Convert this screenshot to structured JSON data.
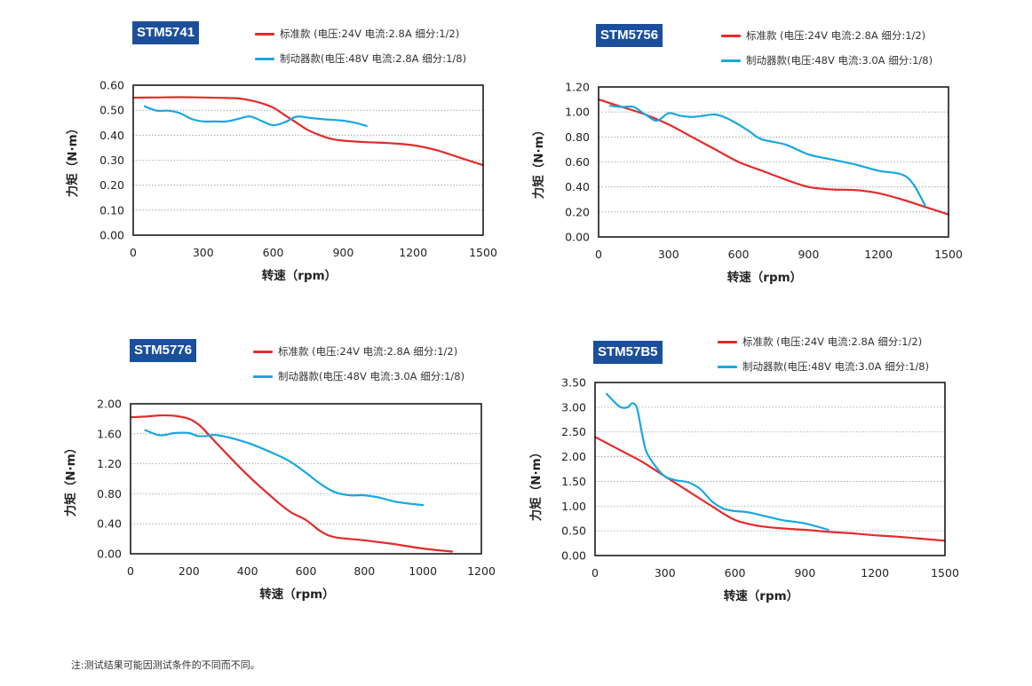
{
  "colors": {
    "standard": "#e32b2b",
    "brake": "#1aa6e0",
    "badge": "#1b4f9c"
  },
  "footnote": "注:测试结果可能因测试条件的不同而不同。",
  "chart_data": [
    {
      "type": "line",
      "title": "STM5741",
      "xlabel": "转速（rpm）",
      "ylabel": "力矩（N·m）",
      "xlim": [
        0,
        1500
      ],
      "ylim": [
        0,
        0.6
      ],
      "xticks": [
        0,
        300,
        600,
        900,
        1200,
        1500
      ],
      "xtick_labels": [
        "0",
        "300",
        "600",
        "900",
        "1200",
        "1500"
      ],
      "yticks": [
        0,
        0.1,
        0.2,
        0.3,
        0.4,
        0.5,
        0.6
      ],
      "ytick_labels": [
        "0.00",
        "0.10",
        "0.20",
        "0.30",
        "0.40",
        "0.50",
        "0.60"
      ],
      "grid": true,
      "series": [
        {
          "name": "标准款 (电压:24V  电流:2.8A  细分:1/2)",
          "legend": "标准款 (电压:24V  电流:2.8A  细分:1/2)",
          "color_key": "standard",
          "points": [
            [
              0,
              0.55
            ],
            [
              100,
              0.551
            ],
            [
              200,
              0.552
            ],
            [
              300,
              0.551
            ],
            [
              400,
              0.549
            ],
            [
              450,
              0.547
            ],
            [
              500,
              0.54
            ],
            [
              550,
              0.528
            ],
            [
              600,
              0.51
            ],
            [
              650,
              0.48
            ],
            [
              700,
              0.45
            ],
            [
              750,
              0.42
            ],
            [
              800,
              0.4
            ],
            [
              850,
              0.385
            ],
            [
              900,
              0.378
            ],
            [
              1000,
              0.372
            ],
            [
              1100,
              0.368
            ],
            [
              1200,
              0.36
            ],
            [
              1300,
              0.34
            ],
            [
              1400,
              0.31
            ],
            [
              1500,
              0.28
            ]
          ]
        },
        {
          "name": "制动器款(电压:48V  电流:2.8A  细分:1/8)",
          "legend": "制动器款(电压:48V  电流:2.8A  细分:1/8)",
          "color_key": "brake",
          "points": [
            [
              50,
              0.515
            ],
            [
              100,
              0.498
            ],
            [
              150,
              0.498
            ],
            [
              200,
              0.488
            ],
            [
              250,
              0.465
            ],
            [
              300,
              0.455
            ],
            [
              350,
              0.455
            ],
            [
              400,
              0.455
            ],
            [
              450,
              0.465
            ],
            [
              500,
              0.475
            ],
            [
              550,
              0.457
            ],
            [
              600,
              0.44
            ],
            [
              650,
              0.452
            ],
            [
              700,
              0.474
            ],
            [
              750,
              0.47
            ],
            [
              800,
              0.465
            ],
            [
              900,
              0.458
            ],
            [
              950,
              0.45
            ],
            [
              1000,
              0.437
            ]
          ]
        }
      ]
    },
    {
      "type": "line",
      "title": "STM5756",
      "xlabel": "转速（rpm）",
      "ylabel": "力矩（N·m）",
      "xlim": [
        0,
        1500
      ],
      "ylim": [
        0,
        1.2
      ],
      "xticks": [
        0,
        300,
        600,
        900,
        1200,
        1500
      ],
      "xtick_labels": [
        "0",
        "300",
        "600",
        "900",
        "1200",
        "1500"
      ],
      "yticks": [
        0,
        0.2,
        0.4,
        0.6,
        0.8,
        1.0,
        1.2
      ],
      "ytick_labels": [
        "0.00",
        "0.20",
        "0.40",
        "0.60",
        "0.80",
        "1.00",
        "1.20"
      ],
      "grid": true,
      "series": [
        {
          "name": "标准款 (电压:24V  电流:2.8A  细分:1/2)",
          "legend": "标准款 (电压:24V  电流:2.8A  细分:1/2)",
          "color_key": "standard",
          "points": [
            [
              0,
              1.1
            ],
            [
              100,
              1.04
            ],
            [
              200,
              0.98
            ],
            [
              300,
              0.9
            ],
            [
              400,
              0.8
            ],
            [
              500,
              0.7
            ],
            [
              600,
              0.6
            ],
            [
              700,
              0.53
            ],
            [
              800,
              0.46
            ],
            [
              900,
              0.4
            ],
            [
              1000,
              0.38
            ],
            [
              1100,
              0.375
            ],
            [
              1200,
              0.35
            ],
            [
              1300,
              0.3
            ],
            [
              1400,
              0.24
            ],
            [
              1500,
              0.18
            ]
          ]
        },
        {
          "name": "制动器款(电压:48V  电流:3.0A  细分:1/8)",
          "legend": "制动器款(电压:48V  电流:3.0A  细分:1/8)",
          "color_key": "brake",
          "points": [
            [
              50,
              1.05
            ],
            [
              100,
              1.04
            ],
            [
              150,
              1.04
            ],
            [
              200,
              0.98
            ],
            [
              250,
              0.93
            ],
            [
              300,
              0.99
            ],
            [
              350,
              0.97
            ],
            [
              400,
              0.96
            ],
            [
              450,
              0.97
            ],
            [
              500,
              0.98
            ],
            [
              550,
              0.95
            ],
            [
              600,
              0.9
            ],
            [
              650,
              0.84
            ],
            [
              700,
              0.78
            ],
            [
              800,
              0.74
            ],
            [
              900,
              0.66
            ],
            [
              1000,
              0.62
            ],
            [
              1100,
              0.58
            ],
            [
              1200,
              0.53
            ],
            [
              1300,
              0.5
            ],
            [
              1350,
              0.42
            ],
            [
              1400,
              0.25
            ]
          ]
        }
      ]
    },
    {
      "type": "line",
      "title": "STM5776",
      "xlabel": "转速（rpm）",
      "ylabel": "力矩（N·m）",
      "xlim": [
        0,
        1200
      ],
      "ylim": [
        0,
        2.0
      ],
      "xticks": [
        0,
        200,
        400,
        600,
        800,
        1000,
        1200
      ],
      "xtick_labels": [
        "0",
        "200",
        "400",
        "600",
        "800",
        "1000",
        "1200"
      ],
      "yticks": [
        0,
        0.4,
        0.8,
        1.2,
        1.6,
        2.0
      ],
      "ytick_labels": [
        "0.00",
        "0.40",
        "0.80",
        "1.20",
        "1.60",
        "2.00"
      ],
      "grid": true,
      "series": [
        {
          "name": "标准款 (电压:24V  电流:2.8A  细分:1/2)",
          "legend": "标准款 (电压:24V  电流:2.8A  细分:1/2)",
          "color_key": "standard",
          "points": [
            [
              0,
              1.82
            ],
            [
              50,
              1.83
            ],
            [
              100,
              1.845
            ],
            [
              150,
              1.84
            ],
            [
              200,
              1.8
            ],
            [
              230,
              1.73
            ],
            [
              250,
              1.66
            ],
            [
              300,
              1.45
            ],
            [
              400,
              1.05
            ],
            [
              500,
              0.7
            ],
            [
              550,
              0.55
            ],
            [
              600,
              0.45
            ],
            [
              650,
              0.3
            ],
            [
              700,
              0.22
            ],
            [
              800,
              0.18
            ],
            [
              900,
              0.13
            ],
            [
              1000,
              0.07
            ],
            [
              1100,
              0.03
            ]
          ]
        },
        {
          "name": "制动器款(电压:48V  电流:3.0A  细分:1/8)",
          "legend": "制动器款(电压:48V  电流:3.0A  细分:1/8)",
          "color_key": "brake",
          "points": [
            [
              50,
              1.65
            ],
            [
              100,
              1.58
            ],
            [
              150,
              1.61
            ],
            [
              200,
              1.61
            ],
            [
              230,
              1.57
            ],
            [
              260,
              1.57
            ],
            [
              300,
              1.58
            ],
            [
              400,
              1.48
            ],
            [
              500,
              1.32
            ],
            [
              550,
              1.22
            ],
            [
              600,
              1.08
            ],
            [
              650,
              0.93
            ],
            [
              700,
              0.82
            ],
            [
              750,
              0.78
            ],
            [
              800,
              0.78
            ],
            [
              850,
              0.75
            ],
            [
              900,
              0.7
            ],
            [
              950,
              0.67
            ],
            [
              1000,
              0.65
            ]
          ]
        }
      ]
    },
    {
      "type": "line",
      "title": "STM57B5",
      "xlabel": "转速（rpm）",
      "ylabel": "力矩（N·m）",
      "xlim": [
        0,
        1500
      ],
      "ylim": [
        0,
        3.5
      ],
      "xticks": [
        0,
        300,
        600,
        900,
        1200,
        1500
      ],
      "xtick_labels": [
        "0",
        "300",
        "600",
        "900",
        "1200",
        "1500"
      ],
      "yticks": [
        0,
        0.5,
        1.0,
        1.5,
        2.0,
        2.5,
        3.0,
        3.5
      ],
      "ytick_labels": [
        "0.00",
        "0.50",
        "1.00",
        "1.50",
        "2.00",
        "2.50",
        "3.00",
        "3.50"
      ],
      "grid": true,
      "series": [
        {
          "name": "标准款 (电压:24V  电流:2.8A  细分:1/2)",
          "legend": "标准款 (电压:24V  电流:2.8A  细分:1/2)",
          "color_key": "standard",
          "points": [
            [
              0,
              2.4
            ],
            [
              100,
              2.15
            ],
            [
              200,
              1.9
            ],
            [
              300,
              1.6
            ],
            [
              400,
              1.3
            ],
            [
              500,
              1.0
            ],
            [
              600,
              0.72
            ],
            [
              700,
              0.6
            ],
            [
              800,
              0.55
            ],
            [
              900,
              0.52
            ],
            [
              1000,
              0.48
            ],
            [
              1100,
              0.45
            ],
            [
              1200,
              0.41
            ],
            [
              1300,
              0.38
            ],
            [
              1400,
              0.34
            ],
            [
              1500,
              0.3
            ]
          ]
        },
        {
          "name": "制动器款(电压:48V  电流:3.0A  细分:1/8)",
          "legend": "制动器款(电压:48V  电流:3.0A  细分:1/8)",
          "color_key": "brake",
          "points": [
            [
              50,
              3.27
            ],
            [
              80,
              3.12
            ],
            [
              110,
              3.0
            ],
            [
              140,
              3.0
            ],
            [
              160,
              3.08
            ],
            [
              180,
              2.98
            ],
            [
              200,
              2.5
            ],
            [
              220,
              2.1
            ],
            [
              260,
              1.8
            ],
            [
              300,
              1.6
            ],
            [
              350,
              1.52
            ],
            [
              400,
              1.48
            ],
            [
              450,
              1.35
            ],
            [
              500,
              1.1
            ],
            [
              550,
              0.95
            ],
            [
              600,
              0.9
            ],
            [
              650,
              0.88
            ],
            [
              700,
              0.83
            ],
            [
              800,
              0.72
            ],
            [
              900,
              0.65
            ],
            [
              1000,
              0.52
            ]
          ]
        }
      ]
    }
  ]
}
